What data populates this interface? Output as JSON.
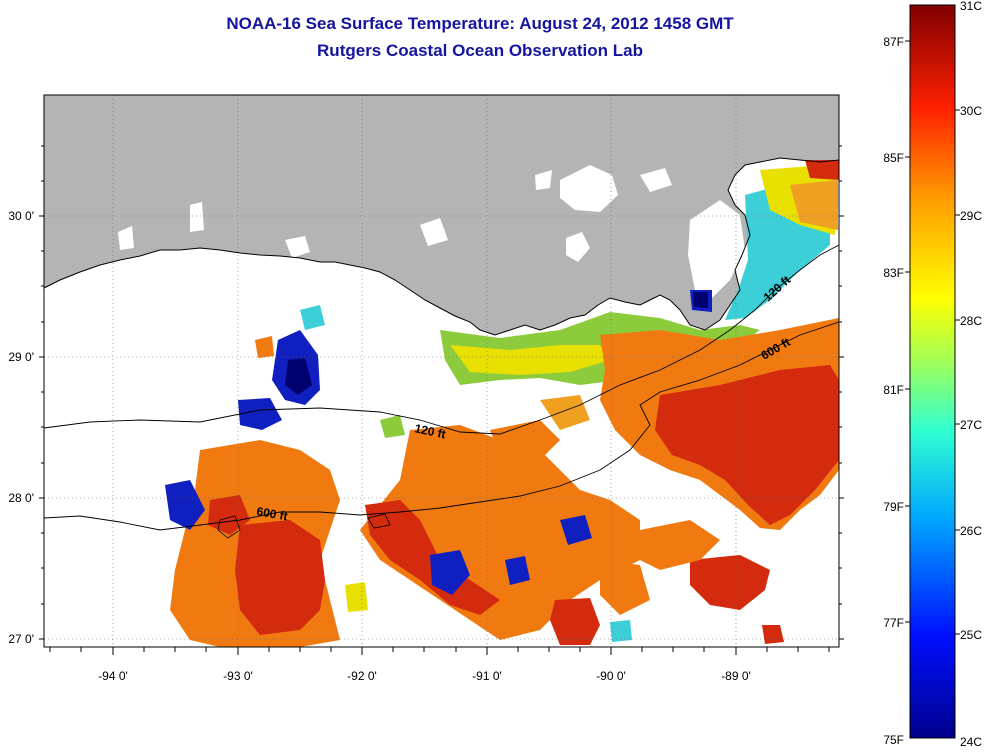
{
  "title": {
    "line1": "NOAA-16 Sea Surface Temperature:  August 24, 2012 1458 GMT",
    "line2": "Rutgers Coastal Ocean Observation Lab"
  },
  "colors": {
    "land": "#b4b4b4",
    "no_data": "#ffffff",
    "title": "#1515a0",
    "warm": "#d42a0e",
    "orange": "#f07a10",
    "yellow": "#e8e000",
    "green": "#8ccc3c",
    "cyan": "#3ccfd8",
    "blue": "#1020c0",
    "navy": "#00006e"
  },
  "map": {
    "lon_ticks": [
      "-94 0'",
      "-93 0'",
      "-92 0'",
      "-91 0'",
      "-90 0'",
      "-89 0'"
    ],
    "lat_ticks": [
      "30 0'",
      "29 0'",
      "28 0'",
      "27 0'"
    ],
    "isobaths": [
      {
        "label": "120 ft"
      },
      {
        "label": "600 ft"
      },
      {
        "label": "120 ft"
      },
      {
        "label": "600 ft"
      }
    ]
  },
  "colorbar": {
    "fahrenheit": [
      "87F",
      "85F",
      "83F",
      "81F",
      "79F",
      "77F",
      "75F"
    ],
    "celsius": [
      "31C",
      "30C",
      "29C",
      "28C",
      "27C",
      "26C",
      "25C",
      "24C"
    ]
  }
}
